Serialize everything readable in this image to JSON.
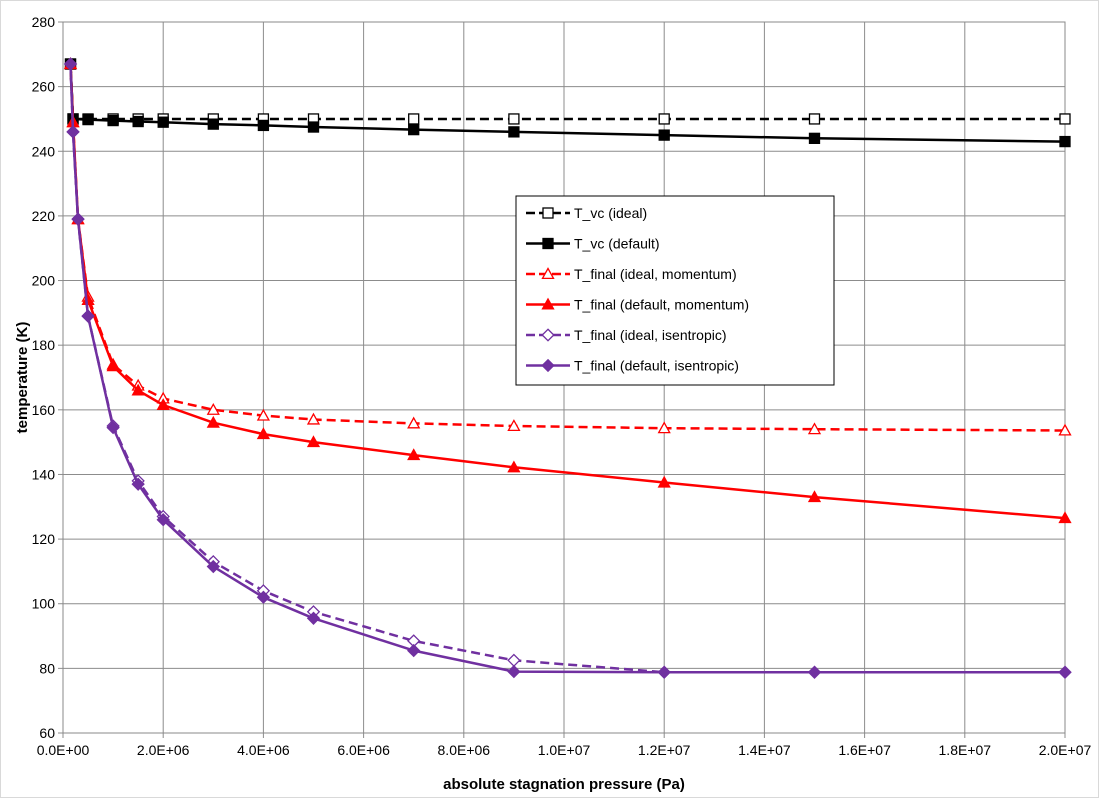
{
  "chart_data": {
    "type": "line",
    "title": "",
    "xlabel": "absolute stagnation pressure (Pa)",
    "ylabel": "temperature (K)",
    "xlim": [
      0,
      20000000
    ],
    "ylim": [
      60,
      280
    ],
    "x_ticks": [
      "0.0E+00",
      "2.0E+06",
      "4.0E+06",
      "6.0E+06",
      "8.0E+06",
      "1.0E+07",
      "1.2E+07",
      "1.4E+07",
      "1.6E+07",
      "1.8E+07",
      "2.0E+07"
    ],
    "y_ticks": [
      "60",
      "80",
      "100",
      "120",
      "140",
      "160",
      "180",
      "200",
      "220",
      "240",
      "260",
      "280"
    ],
    "grid": "both",
    "legend_position": "center-right",
    "series": [
      {
        "name": "T_vc (ideal)",
        "color": "#000000",
        "dashed": true,
        "marker": "square",
        "filled": false,
        "x": [
          150000,
          200000,
          500000,
          1000000,
          1500000,
          2000000,
          3000000,
          4000000,
          5000000,
          7000000,
          9000000,
          12000000,
          15000000,
          20000000
        ],
        "y": [
          267,
          250,
          250,
          250,
          250,
          250,
          250,
          250,
          250,
          250,
          250,
          250,
          250,
          250
        ]
      },
      {
        "name": "T_vc (default)",
        "color": "#000000",
        "dashed": false,
        "marker": "square",
        "filled": true,
        "x": [
          150000,
          200000,
          500000,
          1000000,
          1500000,
          2000000,
          3000000,
          4000000,
          5000000,
          7000000,
          9000000,
          12000000,
          15000000,
          20000000
        ],
        "y": [
          267,
          250,
          249.8,
          249.5,
          249.2,
          249,
          248.4,
          248,
          247.5,
          246.7,
          246,
          245,
          244,
          243
        ]
      },
      {
        "name": "T_final (ideal, momentum)",
        "color": "#ff0000",
        "dashed": true,
        "marker": "triangle",
        "filled": false,
        "x": [
          150000,
          200000,
          300000,
          500000,
          1000000,
          1500000,
          2000000,
          3000000,
          4000000,
          5000000,
          7000000,
          9000000,
          12000000,
          15000000,
          20000000
        ],
        "y": [
          267,
          249,
          219,
          195,
          174,
          167.5,
          163.5,
          160,
          158.2,
          157,
          155.8,
          155,
          154.3,
          154,
          153.6
        ]
      },
      {
        "name": "T_final (default, momentum)",
        "color": "#ff0000",
        "dashed": false,
        "marker": "triangle",
        "filled": true,
        "x": [
          150000,
          200000,
          300000,
          500000,
          1000000,
          1500000,
          2000000,
          3000000,
          4000000,
          5000000,
          7000000,
          9000000,
          12000000,
          15000000,
          20000000
        ],
        "y": [
          267,
          249,
          219,
          194,
          173.5,
          166,
          161.5,
          156,
          152.5,
          150,
          146,
          142.2,
          137.5,
          133,
          126.5
        ]
      },
      {
        "name": "T_final (ideal, isentropic)",
        "color": "#7030a0",
        "dashed": true,
        "marker": "diamond",
        "filled": false,
        "x": [
          150000,
          200000,
          300000,
          500000,
          1000000,
          1500000,
          2000000,
          3000000,
          4000000,
          5000000,
          7000000,
          9000000,
          12000000,
          15000000,
          20000000
        ],
        "y": [
          267,
          246,
          219,
          189,
          155,
          138,
          127,
          113,
          104,
          97.5,
          88.5,
          82.5,
          78.8,
          78.8,
          78.8
        ]
      },
      {
        "name": "T_final (default, isentropic)",
        "color": "#7030a0",
        "dashed": false,
        "marker": "diamond",
        "filled": true,
        "x": [
          150000,
          200000,
          300000,
          500000,
          1000000,
          1500000,
          2000000,
          3000000,
          4000000,
          5000000,
          7000000,
          9000000,
          12000000,
          15000000,
          20000000
        ],
        "y": [
          267,
          246,
          219,
          189,
          154.5,
          137,
          126,
          111.5,
          102,
          95.5,
          85.5,
          79,
          78.8,
          78.8,
          78.8
        ]
      }
    ]
  }
}
